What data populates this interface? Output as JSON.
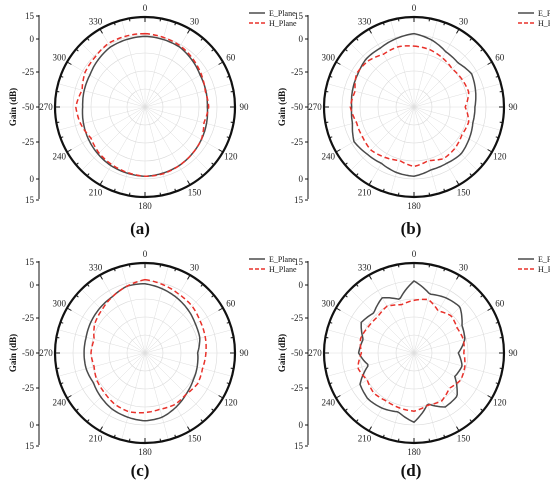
{
  "chart_data": [
    {
      "type": "polar-line",
      "caption": "(a)",
      "ylabel": "Gain (dB)",
      "ytick_labels": [
        "15",
        "0",
        "-25",
        "-50",
        "-25",
        "0",
        "15"
      ],
      "angle_labels": [
        "0",
        "30",
        "60",
        "90",
        "120",
        "150",
        "180",
        "210",
        "240",
        "270",
        "300",
        "330"
      ],
      "r_range": [
        -50,
        15
      ],
      "series": [
        {
          "name": "E_Plane",
          "color": "#4a4a4a",
          "dash": "solid",
          "angles": [
            0,
            30,
            60,
            90,
            120,
            150,
            180,
            210,
            240,
            270,
            300,
            330
          ],
          "values": [
            1,
            0,
            -4,
            -5,
            -3,
            -1,
            0,
            -1,
            -3,
            -5,
            -4,
            0
          ]
        },
        {
          "name": "H_Plane",
          "color": "#e8312a",
          "dash": "dashed",
          "angles": [
            0,
            15,
            30,
            45,
            60,
            75,
            90,
            105,
            120,
            135,
            150,
            165,
            180,
            195,
            210,
            225,
            240,
            255,
            270,
            285,
            300,
            315,
            330,
            345
          ],
          "values": [
            3,
            2,
            1,
            -1,
            -3,
            -5,
            -4,
            -6,
            -3,
            -2,
            -1,
            0,
            0,
            -1,
            -2,
            -3,
            -5,
            -2,
            0,
            -3,
            0,
            1,
            3,
            3
          ]
        }
      ]
    },
    {
      "type": "polar-line",
      "caption": "(b)",
      "ylabel": "Gain (dB)",
      "ytick_labels": [
        "15",
        "0",
        "-25",
        "-50",
        "-25",
        "0",
        "15"
      ],
      "angle_labels": [
        "0",
        "30",
        "60",
        "90",
        "120",
        "150",
        "180",
        "210",
        "240",
        "270",
        "300",
        "330"
      ],
      "r_range": [
        -50,
        15
      ],
      "series": [
        {
          "name": "E_Plane",
          "color": "#4a4a4a",
          "dash": "solid",
          "angles": [
            0,
            15,
            30,
            45,
            60,
            75,
            90,
            105,
            120,
            135,
            150,
            165,
            180,
            195,
            210,
            225,
            240,
            255,
            270,
            285,
            300,
            315,
            330,
            345
          ],
          "values": [
            3,
            0,
            -4,
            -5,
            -2,
            -4,
            -6,
            -6,
            -4,
            -2,
            -3,
            -3,
            0,
            -1,
            -3,
            -2,
            0,
            -4,
            -5,
            -4,
            -3,
            -1,
            -1,
            1
          ]
        },
        {
          "name": "H_Plane",
          "color": "#e8312a",
          "dash": "dashed",
          "angles": [
            0,
            15,
            30,
            45,
            60,
            75,
            90,
            105,
            120,
            135,
            150,
            165,
            180,
            195,
            210,
            225,
            240,
            255,
            270,
            285,
            300,
            315,
            330,
            345
          ],
          "values": [
            -6,
            -7,
            -9,
            -11,
            -10,
            -9,
            -13,
            -9,
            -10,
            -8,
            -7,
            -10,
            -7,
            -10,
            -8,
            -6,
            -7,
            -7,
            -4,
            -6,
            -2,
            -3,
            -6,
            -5
          ]
        }
      ]
    },
    {
      "type": "polar-line",
      "caption": "(c)",
      "ylabel": "Gain (dB)",
      "ytick_labels": [
        "15",
        "0",
        "-25",
        "-50",
        "-25",
        "0",
        "15"
      ],
      "angle_labels": [
        "0",
        "30",
        "60",
        "90",
        "120",
        "150",
        "180",
        "210",
        "240",
        "270",
        "300",
        "330"
      ],
      "r_range": [
        -50,
        15
      ],
      "series": [
        {
          "name": "E_Plane",
          "color": "#4a4a4a",
          "dash": "solid",
          "angles": [
            0,
            15,
            30,
            45,
            60,
            75,
            90,
            105,
            120,
            135,
            150,
            165,
            180,
            195,
            210,
            225,
            240,
            255,
            270,
            285,
            300,
            315,
            330,
            345
          ],
          "values": [
            0,
            -2,
            -4,
            -6,
            -8,
            -9,
            -12,
            -11,
            -10,
            -8,
            -5,
            -2,
            -1,
            -2,
            -3,
            -5,
            -7,
            -6,
            -6,
            -6,
            -5,
            -4,
            -3,
            0
          ]
        },
        {
          "name": "H_Plane",
          "color": "#e8312a",
          "dash": "dashed",
          "angles": [
            0,
            15,
            30,
            45,
            60,
            75,
            90,
            105,
            120,
            135,
            150,
            165,
            180,
            195,
            210,
            225,
            240,
            255,
            270,
            285,
            300,
            315,
            330,
            345
          ],
          "values": [
            3,
            1,
            -1,
            -2,
            -4,
            -5,
            -6,
            -7,
            -6,
            -8,
            -7,
            -8,
            -7,
            -6,
            -7,
            -9,
            -10,
            -12,
            -11,
            -12,
            -8,
            -6,
            -3,
            0
          ]
        }
      ]
    },
    {
      "type": "polar-line",
      "caption": "(d)",
      "ylabel": "Gain (dB)",
      "ytick_labels": [
        "15",
        "0",
        "-25",
        "-50",
        "-25",
        "0",
        "15"
      ],
      "angle_labels": [
        "0",
        "30",
        "60",
        "90",
        "120",
        "150",
        "180",
        "210",
        "240",
        "270",
        "300",
        "330"
      ],
      "r_range": [
        -50,
        15
      ],
      "series": [
        {
          "name": "E_Plane",
          "color": "#4a4a4a",
          "dash": "solid",
          "angles": [
            0,
            15,
            30,
            45,
            60,
            75,
            90,
            105,
            120,
            135,
            150,
            165,
            180,
            195,
            210,
            225,
            240,
            255,
            270,
            285,
            300,
            315,
            330,
            345
          ],
          "values": [
            2,
            -6,
            -4,
            -3,
            -10,
            -12,
            -18,
            -14,
            -16,
            -6,
            -5,
            -12,
            0,
            -6,
            -4,
            -3,
            -5,
            -16,
            -10,
            -12,
            -6,
            -9,
            -4,
            -10
          ]
        },
        {
          "name": "H_Plane",
          "color": "#e8312a",
          "dash": "dashed",
          "angles": [
            0,
            15,
            30,
            45,
            60,
            75,
            90,
            105,
            120,
            135,
            150,
            165,
            180,
            195,
            210,
            225,
            240,
            255,
            270,
            285,
            300,
            315,
            330,
            345
          ],
          "values": [
            -12,
            -10,
            -15,
            -12,
            -14,
            -13,
            -14,
            -12,
            -11,
            -14,
            -10,
            -11,
            -8,
            -9,
            -10,
            -9,
            -11,
            -8,
            -12,
            -10,
            -12,
            -13,
            -11,
            -14
          ]
        }
      ]
    }
  ]
}
